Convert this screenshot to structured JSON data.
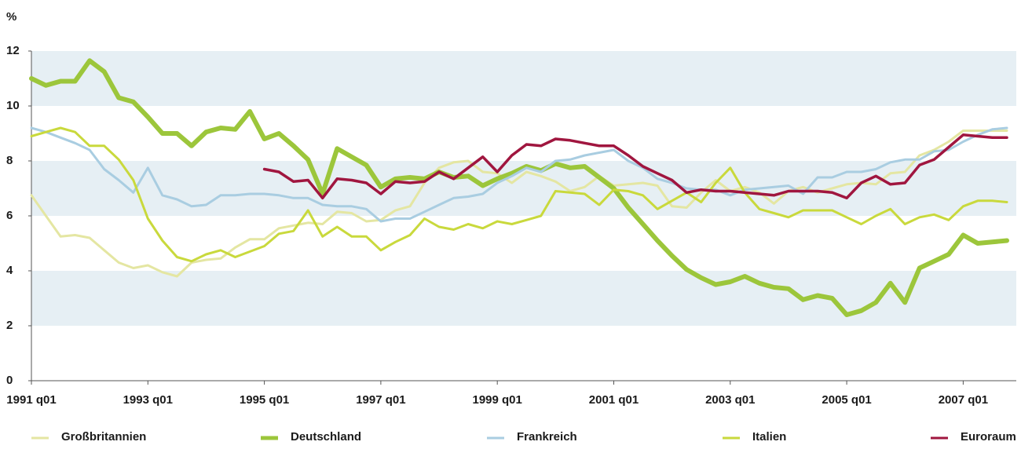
{
  "chart_data": {
    "type": "line",
    "ylabel": "%",
    "categories": [
      "1991 q01",
      null,
      null,
      null,
      null,
      null,
      null,
      null,
      "1993 q01",
      null,
      null,
      null,
      null,
      null,
      null,
      null,
      "1995 q01",
      null,
      null,
      null,
      null,
      null,
      null,
      null,
      "1997 q01",
      null,
      null,
      null,
      null,
      null,
      null,
      null,
      "1999 q01",
      null,
      null,
      null,
      null,
      null,
      null,
      null,
      "2001 q01",
      null,
      null,
      null,
      null,
      null,
      null,
      null,
      "2003 q01",
      null,
      null,
      null,
      null,
      null,
      null,
      null,
      "2005 q01",
      null,
      null,
      null,
      null,
      null,
      null,
      null,
      "2007 q01",
      null,
      null,
      null
    ],
    "ylim": [
      0,
      12
    ],
    "yticks": [
      0,
      2,
      4,
      6,
      8,
      10,
      12
    ],
    "bands": true,
    "series": [
      {
        "name": "Großbritannien",
        "color": "#e4e6a2",
        "line_width": 3,
        "values": [
          6.75,
          6.0,
          5.25,
          5.3,
          5.2,
          4.75,
          4.3,
          4.1,
          4.2,
          3.95,
          3.8,
          4.3,
          4.4,
          4.45,
          4.85,
          5.15,
          5.15,
          5.55,
          5.65,
          5.75,
          5.7,
          6.15,
          6.1,
          5.8,
          5.85,
          6.2,
          6.35,
          7.2,
          7.75,
          7.95,
          8.0,
          7.6,
          7.55,
          7.2,
          7.6,
          7.45,
          7.25,
          6.9,
          7.05,
          7.45,
          7.1,
          7.15,
          7.2,
          7.1,
          6.35,
          6.3,
          6.85,
          7.3,
          6.9,
          7.05,
          6.85,
          6.45,
          6.9,
          7.05,
          6.85,
          7.0,
          7.15,
          7.2,
          7.15,
          7.55,
          7.6,
          8.2,
          8.4,
          8.7,
          9.1,
          9.1,
          9.1,
          9.1
        ]
      },
      {
        "name": "Deutschland",
        "color": "#9cc63b",
        "line_width": 6,
        "values": [
          11.0,
          10.75,
          10.9,
          10.9,
          11.65,
          11.25,
          10.3,
          10.15,
          9.6,
          9.0,
          9.0,
          8.55,
          9.05,
          9.2,
          9.15,
          9.8,
          8.8,
          9.0,
          8.55,
          8.05,
          6.8,
          8.45,
          8.15,
          7.85,
          7.05,
          7.35,
          7.4,
          7.35,
          7.6,
          7.4,
          7.45,
          7.1,
          7.35,
          7.55,
          7.8,
          7.65,
          7.9,
          7.75,
          7.8,
          7.4,
          7.0,
          6.3,
          5.7,
          5.1,
          4.55,
          4.05,
          3.75,
          3.5,
          3.6,
          3.8,
          3.55,
          3.4,
          3.35,
          2.95,
          3.1,
          3.0,
          2.4,
          2.55,
          2.85,
          3.55,
          2.85,
          4.1,
          4.35,
          4.6,
          5.3,
          5.0,
          5.05,
          5.1
        ]
      },
      {
        "name": "Frankreich",
        "color": "#a9cde1",
        "line_width": 3,
        "values": [
          9.2,
          9.05,
          8.85,
          8.65,
          8.4,
          7.7,
          7.3,
          6.85,
          7.75,
          6.75,
          6.6,
          6.35,
          6.4,
          6.75,
          6.75,
          6.8,
          6.8,
          6.75,
          6.65,
          6.65,
          6.4,
          6.35,
          6.35,
          6.25,
          5.8,
          5.9,
          5.9,
          6.15,
          6.4,
          6.65,
          6.7,
          6.8,
          7.2,
          7.45,
          7.75,
          7.6,
          8.0,
          8.05,
          8.2,
          8.3,
          8.4,
          8.0,
          7.75,
          7.35,
          7.2,
          7.0,
          6.95,
          6.95,
          6.75,
          6.95,
          7.0,
          7.05,
          7.1,
          6.8,
          7.4,
          7.4,
          7.6,
          7.6,
          7.7,
          7.95,
          8.05,
          8.05,
          8.35,
          8.4,
          8.7,
          8.95,
          9.15,
          9.2
        ]
      },
      {
        "name": "Italien",
        "color": "#c9d93c",
        "line_width": 3,
        "values": [
          8.9,
          9.05,
          9.2,
          9.05,
          8.55,
          8.55,
          8.05,
          7.3,
          5.9,
          5.1,
          4.5,
          4.35,
          4.6,
          4.75,
          4.5,
          4.7,
          4.9,
          5.35,
          5.45,
          6.2,
          5.25,
          5.6,
          5.25,
          5.25,
          4.75,
          5.05,
          5.3,
          5.9,
          5.6,
          5.5,
          5.7,
          5.55,
          5.8,
          5.7,
          5.85,
          6.0,
          6.9,
          6.85,
          6.8,
          6.4,
          6.95,
          6.9,
          6.75,
          6.25,
          6.55,
          6.85,
          6.5,
          7.2,
          7.75,
          6.85,
          6.25,
          6.1,
          5.95,
          6.2,
          6.2,
          6.2,
          5.95,
          5.7,
          6.0,
          6.25,
          5.7,
          5.95,
          6.05,
          5.85,
          6.35,
          6.55,
          6.55,
          6.5
        ]
      },
      {
        "name": "Euroraum",
        "color": "#a0163f",
        "line_width": 3.5,
        "values": [
          null,
          null,
          null,
          null,
          null,
          null,
          null,
          null,
          null,
          null,
          null,
          null,
          null,
          null,
          null,
          null,
          7.7,
          7.6,
          7.25,
          7.3,
          6.65,
          7.35,
          7.3,
          7.2,
          6.8,
          7.25,
          7.2,
          7.25,
          7.6,
          7.35,
          7.75,
          8.15,
          7.6,
          8.2,
          8.6,
          8.55,
          8.8,
          8.75,
          8.65,
          8.55,
          8.55,
          8.2,
          7.8,
          7.55,
          7.3,
          6.85,
          6.95,
          6.9,
          6.9,
          6.85,
          6.8,
          6.75,
          6.9,
          6.9,
          6.9,
          6.85,
          6.65,
          7.2,
          7.45,
          7.15,
          7.2,
          7.85,
          8.05,
          8.5,
          8.95,
          8.9,
          8.85,
          8.85
        ]
      }
    ]
  }
}
